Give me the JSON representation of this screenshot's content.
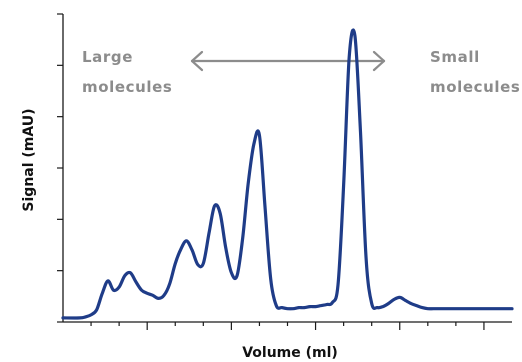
{
  "chart_data": {
    "type": "line",
    "title": "",
    "xlabel": "Volume (ml)",
    "ylabel": "Signal (mAU)",
    "x_ticks_labeled": false,
    "y_ticks_labeled": false,
    "grid": false,
    "annotations": {
      "left": [
        "Large",
        "molecules"
      ],
      "right": [
        "Small",
        "molecules"
      ],
      "arrow": "double-headed"
    },
    "series": [
      {
        "x": [
          0,
          0.6,
          0.8,
          1.0,
          1.2,
          1.4,
          1.6,
          1.8,
          2.0,
          2.2,
          2.4,
          2.6,
          2.8,
          3.0,
          3.2,
          3.4,
          3.6,
          3.8,
          4.0,
          4.2,
          4.4,
          4.6,
          4.8,
          5.0,
          5.2,
          5.4,
          5.6,
          5.8,
          6.0,
          6.2,
          6.4,
          6.6,
          6.8,
          7.0,
          7.2,
          7.4,
          7.6,
          7.8,
          8.0,
          8.2,
          8.4,
          8.6,
          8.8,
          9.0,
          9.2,
          9.4,
          9.6,
          9.8,
          10.0,
          10.2,
          10.4,
          10.6,
          10.8,
          11.0,
          11.2,
          11.4,
          11.6,
          11.8,
          12.0,
          12.2,
          12.4,
          12.6,
          12.8,
          13.0,
          13.2,
          13.4,
          13.6,
          13.8,
          14.0,
          14.2,
          14.4,
          14.6,
          14.8,
          15.0,
          15.2,
          15.4,
          15.6,
          15.8,
          16.0
        ],
        "values": [
          4,
          4,
          5,
          7,
          12,
          28,
          40,
          31,
          34,
          45,
          48,
          39,
          31,
          28,
          26,
          23,
          26,
          37,
          57,
          71,
          79,
          70,
          56,
          57,
          86,
          113,
          106,
          72,
          48,
          45,
          81,
          135,
          173,
          182,
          111,
          42,
          16,
          14,
          13,
          13,
          14,
          14,
          15,
          15,
          16,
          17,
          19,
          36,
          133,
          258,
          279,
          185,
          62,
          18,
          14,
          15,
          18,
          22,
          24,
          21,
          18,
          16,
          14,
          13,
          13,
          13,
          13,
          13,
          13,
          13,
          13,
          13,
          13,
          13,
          13,
          13,
          13,
          13,
          13
        ]
      }
    ],
    "xlim": [
      0,
      16
    ],
    "ylim": [
      0,
      300
    ],
    "x_ticks": [
      1,
      2,
      3,
      4,
      5,
      6,
      7,
      8,
      9,
      10,
      11,
      12,
      13,
      14,
      15
    ],
    "y_ticks": [
      0,
      50,
      100,
      150,
      200,
      250,
      300
    ],
    "line_color": "#1f3c88"
  }
}
